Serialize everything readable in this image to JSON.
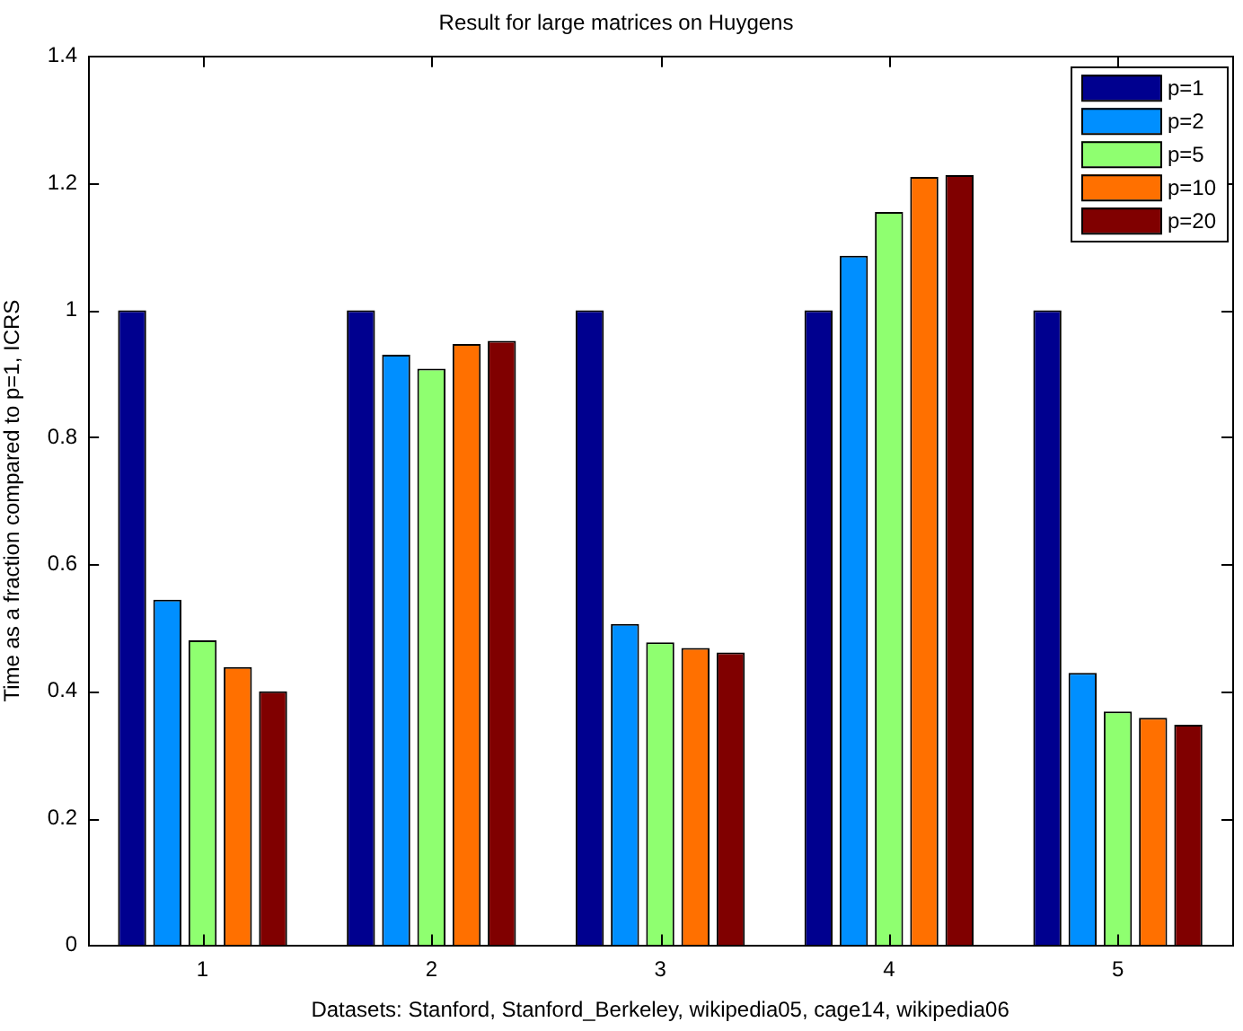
{
  "chart_data": {
    "type": "bar",
    "title": "Result for large matrices on Huygens",
    "xlabel": "Datasets: Stanford, Stanford_Berkeley, wikipedia05, cage14, wikipedia06",
    "ylabel": "Time as a fraction compared to p=1, ICRS",
    "categories": [
      "1",
      "2",
      "3",
      "4",
      "5"
    ],
    "series": [
      {
        "name": "p=1",
        "color": "#00008f",
        "values": [
          1,
          1,
          1,
          1,
          1
        ]
      },
      {
        "name": "p=2",
        "color": "#008fff",
        "values": [
          0.544,
          0.93,
          0.506,
          1.086,
          0.429
        ]
      },
      {
        "name": "p=5",
        "color": "#8fff70",
        "values": [
          0.48,
          0.908,
          0.477,
          1.155,
          0.368
        ]
      },
      {
        "name": "p=10",
        "color": "#ff7000",
        "values": [
          0.438,
          0.947,
          0.468,
          1.21,
          0.358
        ]
      },
      {
        "name": "p=20",
        "color": "#800000",
        "values": [
          0.4,
          0.952,
          0.461,
          1.213,
          0.347
        ]
      }
    ],
    "ylim": [
      0,
      1.4
    ],
    "yticks": [
      0,
      0.2,
      0.4,
      0.6,
      0.8,
      1,
      1.2,
      1.4
    ],
    "grid": false,
    "legend": "top right"
  }
}
